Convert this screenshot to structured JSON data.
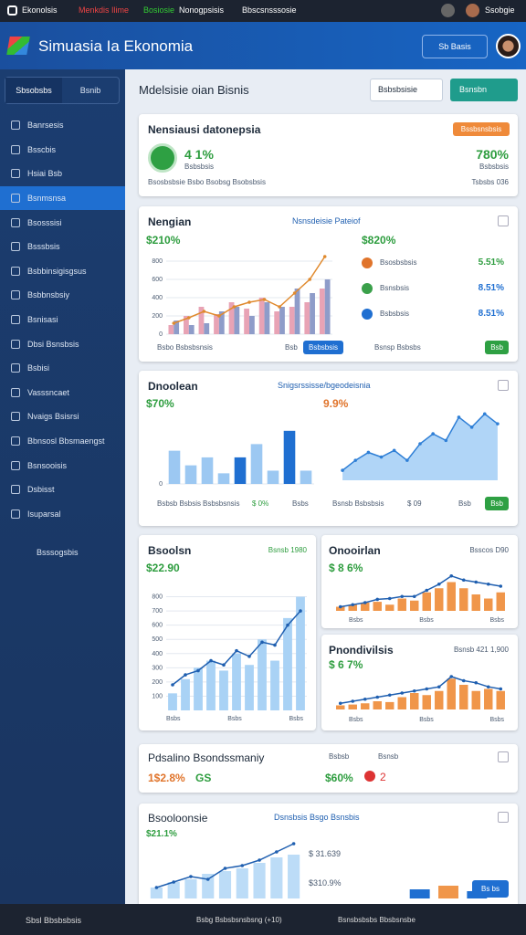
{
  "topbar": {
    "items": [
      "Ekonolsis",
      "Menkdis Ilime",
      "Bosiosie",
      "Nonogpsisis",
      "Bbscsnsssosie"
    ],
    "user": "Ssobgie"
  },
  "header": {
    "title": "Simuasia Ia Ekonomia",
    "button": "Sb Basis"
  },
  "sidebar": {
    "tabs": [
      "Sbsobsbs",
      "Bsnib"
    ],
    "active": 3,
    "items": [
      "Banrsesis",
      "Bsscbis",
      "Hsiai Bsb",
      "Bsnmsnsa",
      "Bsosssisi",
      "Bsssbsis",
      "Bsbbinsigisgsus",
      "Bsbbnsbsiy",
      "Bsnisasi",
      "Dbsi Bsnsbsis",
      "Bsbisi",
      "Vasssncaet",
      "Nvaigs Bsisrsi",
      "Bbnsosl Bbsmaengst",
      "Bsnsooisis",
      "Dsbisst",
      "Isuparsal"
    ],
    "footer": "Bsssogsbis"
  },
  "main": {
    "title": "Mdelsisie oian Bisnis",
    "dropdown": "Bsbsbsisie",
    "button": "Bsnsbn"
  },
  "summary": {
    "title": "Nensiausi datonepsia",
    "badge": "Bssbsnsbsis",
    "left_value": "4 1%",
    "left_label": "Bsbsbsis",
    "right_value": "780%",
    "right_label": "Bsbsbsis",
    "footer_left": "Bsosbsbsie Bsbo Bsobsg Bsobsbsis",
    "footer_right": "Tsbsbs 036"
  },
  "panel1": {
    "title": "Nengian",
    "subtitle": "Nsnsdeisie Pateiof",
    "value": "$210%",
    "right_value": "$820%",
    "chart": {
      "ylim": [
        0,
        900
      ],
      "yticks": [
        0,
        200,
        400,
        600,
        800
      ],
      "series": [
        {
          "kind": "bar",
          "color": "#e8a3b5",
          "values": [
            100,
            200,
            300,
            220,
            350,
            280,
            400,
            250,
            300,
            350,
            500
          ]
        },
        {
          "kind": "bar",
          "color": "#8e9cc9",
          "values": [
            150,
            100,
            120,
            250,
            300,
            200,
            350,
            300,
            500,
            450,
            600
          ]
        },
        {
          "kind": "line",
          "color": "#e08a2e",
          "values": [
            120,
            180,
            250,
            200,
            300,
            350,
            380,
            300,
            450,
            600,
            850
          ]
        }
      ]
    },
    "list": [
      {
        "name": "Bsosbsbsis",
        "value": "5.51%",
        "color": "#e0742b"
      },
      {
        "name": "Bsnsbsis",
        "value": "8.51%",
        "color": "#3aa04a"
      },
      {
        "name": "Bsbsbsis",
        "value": "8.51%",
        "color": "#1f6fd1"
      }
    ],
    "legend": [
      "Bsbo Bsbsbsnsis",
      "Bsb"
    ],
    "button": "Bsbsbsis",
    "footer": "Bsnsp Bsbsbs",
    "badge": "Bsb"
  },
  "panel2": {
    "title": "Dnoolean",
    "subtitle": "Snigsrssisse/bgeodeisnia",
    "value": "$70%",
    "right_value": "9.9%",
    "bars": {
      "ylim": [
        0,
        1.1
      ],
      "yticks": [
        0
      ],
      "series": [
        {
          "kind": "bar",
          "color": "#9cc8f2",
          "colors": [
            "#9cc8f2",
            "#9cc8f2",
            "#9cc8f2",
            "#9cc8f2",
            "#1f6fd1",
            "#9cc8f2",
            "#9cc8f2",
            "#1f6fd1",
            "#9cc8f2"
          ],
          "values": [
            0.5,
            0.28,
            0.4,
            0.16,
            0.4,
            0.6,
            0.2,
            0.8,
            0.2
          ]
        }
      ]
    },
    "area": {
      "ylim": [
        0,
        1.1
      ],
      "series": [
        {
          "kind": "area",
          "color": "#2f7fd6",
          "values": [
            0.15,
            0.3,
            0.42,
            0.35,
            0.45,
            0.3,
            0.55,
            0.7,
            0.6,
            0.95,
            0.8,
            1.0,
            0.85
          ]
        }
      ]
    },
    "legend": [
      "Bsbsb Bsbsis",
      "Bsbsbsnsis",
      "$ 0%",
      "Bsbs",
      "Bsnsb Bsbsbsis",
      "$ 09",
      "Bsb"
    ],
    "badge": "Bsb"
  },
  "panel3": {
    "title": "Bsoolsn",
    "subtitle": "Bsnsb 1980",
    "value": "$22.90",
    "chart": {
      "ylim": [
        0,
        900
      ],
      "yticks": [
        100,
        200,
        300,
        400,
        500,
        600,
        700,
        800
      ],
      "series": [
        {
          "kind": "bar",
          "color": "#a9d2f5",
          "values": [
            120,
            220,
            300,
            350,
            280,
            400,
            320,
            500,
            350,
            650,
            800
          ]
        },
        {
          "kind": "line",
          "color": "#1f5fb0",
          "values": [
            180,
            250,
            280,
            350,
            320,
            420,
            380,
            480,
            460,
            600,
            700
          ]
        }
      ]
    },
    "xlabels": [
      "Bsbs",
      "Bsbs",
      "Bsbs"
    ]
  },
  "panel4": {
    "title": "Onooirlan",
    "subtitle": "Bsscos D90",
    "value": "$ 8 6%",
    "chart": {
      "ylim": [
        0,
        1
      ],
      "series": [
        {
          "kind": "bar",
          "color": "#f0964a",
          "values": [
            0.1,
            0.15,
            0.2,
            0.22,
            0.15,
            0.3,
            0.25,
            0.45,
            0.55,
            0.7,
            0.55,
            0.4,
            0.3,
            0.45
          ]
        },
        {
          "kind": "line",
          "color": "#1f5fb0",
          "values": [
            0.1,
            0.15,
            0.2,
            0.28,
            0.3,
            0.35,
            0.35,
            0.5,
            0.65,
            0.85,
            0.75,
            0.7,
            0.65,
            0.6
          ]
        }
      ]
    },
    "xlabels": [
      "Bsbs",
      "Bsbs",
      "Bsbs"
    ]
  },
  "panel5": {
    "title": "Pnondivilsis",
    "subtitle": "Bsnsb 421 1,900",
    "value": "$ 6 7%",
    "chart": {
      "ylim": [
        0,
        1
      ],
      "series": [
        {
          "kind": "bar",
          "color": "#f0964a",
          "values": [
            0.1,
            0.12,
            0.15,
            0.2,
            0.18,
            0.3,
            0.4,
            0.35,
            0.45,
            0.75,
            0.6,
            0.45,
            0.5,
            0.45
          ]
        },
        {
          "kind": "line",
          "color": "#1f5fb0",
          "values": [
            0.15,
            0.2,
            0.25,
            0.3,
            0.35,
            0.4,
            0.45,
            0.5,
            0.55,
            0.8,
            0.7,
            0.65,
            0.55,
            0.5
          ]
        }
      ]
    },
    "xlabels": [
      "Bsbs",
      "Bsbs",
      "Bsbs"
    ]
  },
  "panel6": {
    "title": "Pdsalino Bsondssmaniy",
    "left_value": "1$2.8%",
    "left_tag": "GS",
    "label_a": "Bsbsb",
    "label_b": "Bsnsb",
    "mid_value": "$60%",
    "count": "2"
  },
  "panel7": {
    "title": "Bsooloonsie",
    "subtitle": "Dsnsbsis Bsgo Bsnsbis",
    "value": "$21.1%",
    "value_b": "$ 31.639",
    "value_c": "$310.9%",
    "button": "Bs bs",
    "chart": {
      "ylim": [
        0,
        1
      ],
      "series": [
        {
          "kind": "bar",
          "color": "#bcdcf7",
          "values": [
            0.2,
            0.3,
            0.35,
            0.45,
            0.5,
            0.55,
            0.65,
            0.75,
            0.8
          ]
        },
        {
          "kind": "line",
          "color": "#1f5fb0",
          "values": [
            0.2,
            0.3,
            0.4,
            0.35,
            0.55,
            0.6,
            0.7,
            0.85,
            1.0
          ]
        }
      ]
    },
    "side": {
      "ylim": [
        0,
        1
      ],
      "series": [
        {
          "kind": "bar",
          "color": "#1f6fd1",
          "colors": [
            "#1f6fd1",
            "#f0964a",
            "#1f6fd1"
          ],
          "values": [
            0.5,
            0.7,
            0.4
          ]
        }
      ]
    }
  },
  "bottombar": {
    "left": "Sbsl Bbsbsbsis",
    "items": [
      "Bsbg Bsbsbsnsbsng (+10)",
      "Bsnsbsbsbs Bbsbsnsbe"
    ]
  }
}
